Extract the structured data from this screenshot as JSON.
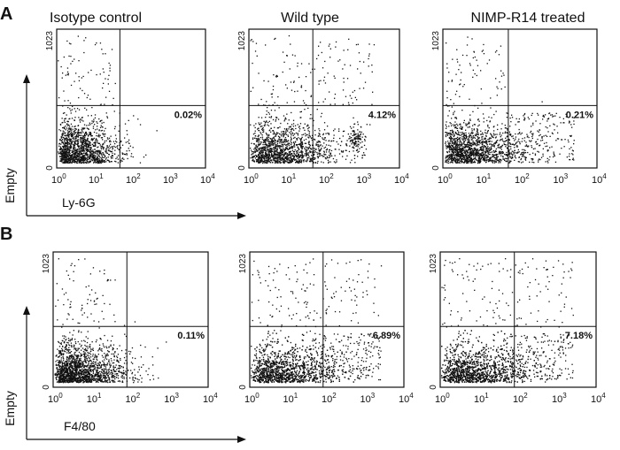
{
  "panels": [
    {
      "letter": "A",
      "x_label": "Ly-6G",
      "y_label": "Empty",
      "plots": [
        {
          "title": "Isotype control",
          "percent": "0.02%"
        },
        {
          "title": "Wild type",
          "percent": "4.12%"
        },
        {
          "title": "NIMP-R14 treated",
          "percent": "0.21%"
        }
      ]
    },
    {
      "letter": "B",
      "x_label": "F4/80",
      "y_label": "Empty",
      "plots": [
        {
          "title": "",
          "percent": "0.11%"
        },
        {
          "title": "",
          "percent": "6.89%"
        },
        {
          "title": "",
          "percent": "7.18%"
        }
      ]
    }
  ],
  "chart_data": {
    "type": "scatter",
    "description_free": true,
    "x_scale": "log",
    "xlim": [
      1,
      10000
    ],
    "ylim": [
      0,
      1023
    ],
    "x_ticks": [
      {
        "base": "10",
        "exp": "0"
      },
      {
        "base": "10",
        "exp": "1"
      },
      {
        "base": "10",
        "exp": "2"
      },
      {
        "base": "10",
        "exp": "3"
      },
      {
        "base": "10",
        "exp": "4"
      }
    ],
    "y_ticks": [
      "0",
      "1023"
    ],
    "plots": [
      {
        "panel": "A",
        "title": "Isotype control",
        "gate_x": 50,
        "gate_y": 460,
        "upper_right_percent": 0.02
      },
      {
        "panel": "A",
        "title": "Wild type",
        "gate_x": 50,
        "gate_y": 460,
        "upper_right_percent": 4.12
      },
      {
        "panel": "A",
        "title": "NIMP-R14 treated",
        "gate_x": 50,
        "gate_y": 460,
        "upper_right_percent": 0.21
      },
      {
        "panel": "B",
        "title": "",
        "gate_x": 80,
        "gate_y": 460,
        "upper_right_percent": 0.11
      },
      {
        "panel": "B",
        "title": "",
        "gate_x": 80,
        "gate_y": 460,
        "upper_right_percent": 6.89
      },
      {
        "panel": "B",
        "title": "",
        "gate_x": 80,
        "gate_y": 460,
        "upper_right_percent": 7.18
      }
    ]
  }
}
